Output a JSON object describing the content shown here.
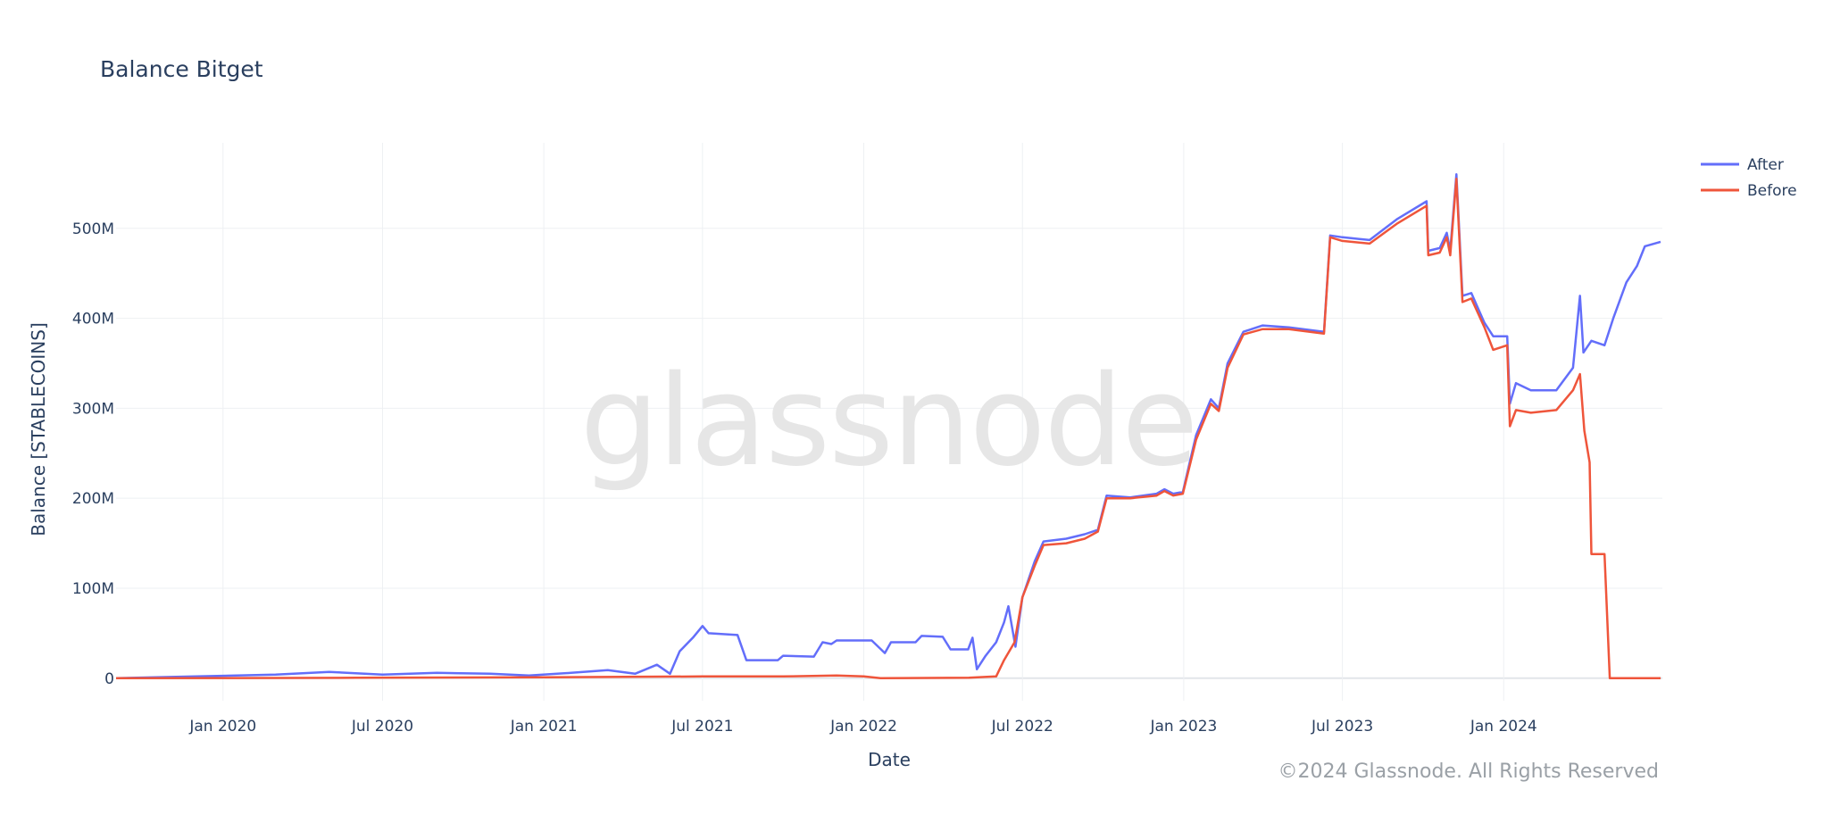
{
  "chart_data": {
    "type": "line",
    "title": "Balance Bitget",
    "xlabel": "Date",
    "ylabel": "Balance [STABLECOINS]",
    "x_range": [
      "2019-09-01",
      "2024-06-30"
    ],
    "ylim": [
      -25,
      595
    ],
    "y_ticks": [
      {
        "value": 0,
        "label": "0"
      },
      {
        "value": 100,
        "label": "100M"
      },
      {
        "value": 200,
        "label": "200M"
      },
      {
        "value": 300,
        "label": "300M"
      },
      {
        "value": 400,
        "label": "400M"
      },
      {
        "value": 500,
        "label": "500M"
      }
    ],
    "x_ticks": [
      {
        "date": "2020-01-01",
        "label": "Jan 2020"
      },
      {
        "date": "2020-07-01",
        "label": "Jul 2020"
      },
      {
        "date": "2021-01-01",
        "label": "Jan 2021"
      },
      {
        "date": "2021-07-01",
        "label": "Jul 2021"
      },
      {
        "date": "2022-01-01",
        "label": "Jan 2022"
      },
      {
        "date": "2022-07-01",
        "label": "Jul 2022"
      },
      {
        "date": "2023-01-01",
        "label": "Jan 2023"
      },
      {
        "date": "2023-07-01",
        "label": "Jul 2023"
      },
      {
        "date": "2024-01-01",
        "label": "Jan 2024"
      }
    ],
    "grid": true,
    "legend": "top-right",
    "series": [
      {
        "name": "After",
        "color": "#636efa",
        "points": [
          [
            "2019-09-01",
            0
          ],
          [
            "2019-12-01",
            2
          ],
          [
            "2020-03-01",
            4
          ],
          [
            "2020-05-01",
            7
          ],
          [
            "2020-07-01",
            4
          ],
          [
            "2020-09-01",
            6
          ],
          [
            "2020-11-01",
            5
          ],
          [
            "2020-12-15",
            3
          ],
          [
            "2021-02-01",
            6
          ],
          [
            "2021-03-15",
            9
          ],
          [
            "2021-04-15",
            5
          ],
          [
            "2021-05-10",
            15
          ],
          [
            "2021-05-25",
            5
          ],
          [
            "2021-06-05",
            30
          ],
          [
            "2021-06-20",
            45
          ],
          [
            "2021-07-01",
            58
          ],
          [
            "2021-07-08",
            50
          ],
          [
            "2021-08-10",
            48
          ],
          [
            "2021-08-20",
            20
          ],
          [
            "2021-09-25",
            20
          ],
          [
            "2021-10-01",
            25
          ],
          [
            "2021-11-05",
            24
          ],
          [
            "2021-11-15",
            40
          ],
          [
            "2021-11-25",
            38
          ],
          [
            "2021-12-01",
            42
          ],
          [
            "2022-01-10",
            42
          ],
          [
            "2022-01-25",
            28
          ],
          [
            "2022-02-01",
            40
          ],
          [
            "2022-03-01",
            40
          ],
          [
            "2022-03-08",
            47
          ],
          [
            "2022-04-01",
            46
          ],
          [
            "2022-04-10",
            32
          ],
          [
            "2022-04-30",
            32
          ],
          [
            "2022-05-05",
            45
          ],
          [
            "2022-05-10",
            10
          ],
          [
            "2022-05-20",
            25
          ],
          [
            "2022-06-01",
            40
          ],
          [
            "2022-06-10",
            62
          ],
          [
            "2022-06-15",
            80
          ],
          [
            "2022-06-23",
            35
          ],
          [
            "2022-07-01",
            90
          ],
          [
            "2022-07-15",
            130
          ],
          [
            "2022-07-25",
            152
          ],
          [
            "2022-08-20",
            155
          ],
          [
            "2022-09-10",
            160
          ],
          [
            "2022-09-25",
            165
          ],
          [
            "2022-10-05",
            203
          ],
          [
            "2022-11-01",
            201
          ],
          [
            "2022-12-01",
            205
          ],
          [
            "2022-12-10",
            210
          ],
          [
            "2022-12-20",
            205
          ],
          [
            "2022-12-31",
            207
          ],
          [
            "2023-01-15",
            270
          ],
          [
            "2023-02-01",
            310
          ],
          [
            "2023-02-10",
            300
          ],
          [
            "2023-02-20",
            350
          ],
          [
            "2023-03-10",
            385
          ],
          [
            "2023-04-01",
            392
          ],
          [
            "2023-05-01",
            390
          ],
          [
            "2023-06-10",
            385
          ],
          [
            "2023-06-17",
            492
          ],
          [
            "2023-07-01",
            490
          ],
          [
            "2023-08-01",
            487
          ],
          [
            "2023-09-01",
            510
          ],
          [
            "2023-10-05",
            530
          ],
          [
            "2023-10-07",
            475
          ],
          [
            "2023-10-20",
            478
          ],
          [
            "2023-10-28",
            495
          ],
          [
            "2023-11-01",
            475
          ],
          [
            "2023-11-08",
            560
          ],
          [
            "2023-11-15",
            425
          ],
          [
            "2023-11-25",
            428
          ],
          [
            "2023-12-10",
            395
          ],
          [
            "2023-12-20",
            380
          ],
          [
            "2024-01-05",
            380
          ],
          [
            "2024-01-08",
            305
          ],
          [
            "2024-01-15",
            328
          ],
          [
            "2024-02-01",
            320
          ],
          [
            "2024-03-01",
            320
          ],
          [
            "2024-03-20",
            345
          ],
          [
            "2024-03-28",
            425
          ],
          [
            "2024-04-01",
            362
          ],
          [
            "2024-04-10",
            375
          ],
          [
            "2024-04-25",
            370
          ],
          [
            "2024-05-05",
            400
          ],
          [
            "2024-05-20",
            440
          ],
          [
            "2024-06-01",
            458
          ],
          [
            "2024-06-10",
            480
          ],
          [
            "2024-06-28",
            485
          ]
        ]
      },
      {
        "name": "Before",
        "color": "#ef553b",
        "points": [
          [
            "2019-09-01",
            0
          ],
          [
            "2020-06-01",
            0.5
          ],
          [
            "2021-01-01",
            1
          ],
          [
            "2021-07-01",
            2
          ],
          [
            "2021-10-01",
            2
          ],
          [
            "2021-12-01",
            3
          ],
          [
            "2022-01-01",
            2
          ],
          [
            "2022-01-20",
            0
          ],
          [
            "2022-05-01",
            0.5
          ],
          [
            "2022-06-01",
            2
          ],
          [
            "2022-06-10",
            20
          ],
          [
            "2022-06-22",
            40
          ],
          [
            "2022-07-01",
            90
          ],
          [
            "2022-07-15",
            125
          ],
          [
            "2022-07-25",
            148
          ],
          [
            "2022-08-20",
            150
          ],
          [
            "2022-09-10",
            155
          ],
          [
            "2022-09-25",
            163
          ],
          [
            "2022-10-05",
            200
          ],
          [
            "2022-11-01",
            200
          ],
          [
            "2022-12-01",
            203
          ],
          [
            "2022-12-10",
            208
          ],
          [
            "2022-12-20",
            203
          ],
          [
            "2022-12-31",
            205
          ],
          [
            "2023-01-15",
            265
          ],
          [
            "2023-02-01",
            305
          ],
          [
            "2023-02-10",
            297
          ],
          [
            "2023-02-20",
            345
          ],
          [
            "2023-03-10",
            382
          ],
          [
            "2023-04-01",
            388
          ],
          [
            "2023-05-01",
            388
          ],
          [
            "2023-06-10",
            383
          ],
          [
            "2023-06-17",
            490
          ],
          [
            "2023-07-01",
            486
          ],
          [
            "2023-08-01",
            483
          ],
          [
            "2023-09-01",
            505
          ],
          [
            "2023-10-05",
            525
          ],
          [
            "2023-10-07",
            470
          ],
          [
            "2023-10-20",
            473
          ],
          [
            "2023-10-28",
            490
          ],
          [
            "2023-11-01",
            470
          ],
          [
            "2023-11-08",
            555
          ],
          [
            "2023-11-15",
            418
          ],
          [
            "2023-11-25",
            422
          ],
          [
            "2023-12-10",
            390
          ],
          [
            "2023-12-20",
            365
          ],
          [
            "2024-01-05",
            370
          ],
          [
            "2024-01-08",
            280
          ],
          [
            "2024-01-15",
            298
          ],
          [
            "2024-02-01",
            295
          ],
          [
            "2024-03-01",
            298
          ],
          [
            "2024-03-20",
            320
          ],
          [
            "2024-03-28",
            338
          ],
          [
            "2024-04-02",
            275
          ],
          [
            "2024-04-08",
            240
          ],
          [
            "2024-04-10",
            138
          ],
          [
            "2024-04-25",
            138
          ],
          [
            "2024-05-01",
            0
          ],
          [
            "2024-06-28",
            0
          ]
        ]
      }
    ]
  },
  "watermark": "glassnode",
  "copyright": "©2024 Glassnode. All Rights Reserved"
}
